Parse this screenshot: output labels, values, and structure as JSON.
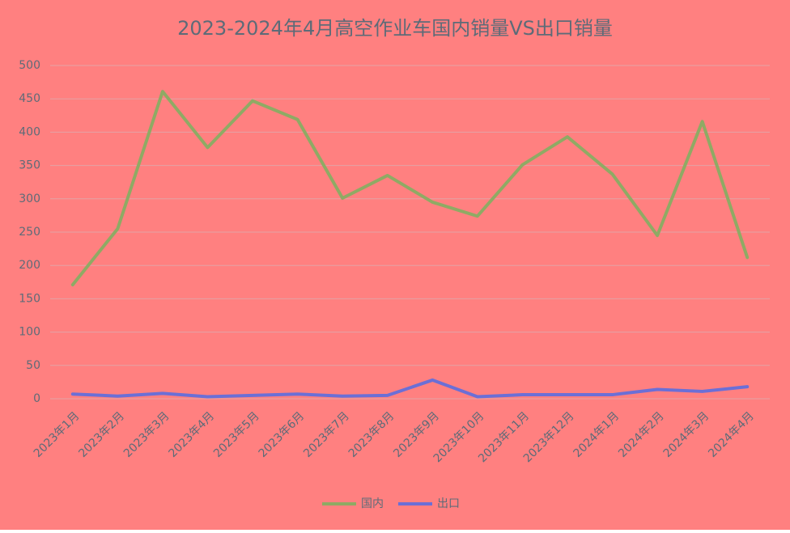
{
  "chart_data": {
    "type": "line",
    "title": "2023-2024年4月高空作业车国内销量VS出口销量",
    "categories": [
      "2023年1月",
      "2023年2月",
      "2023年3月",
      "2023年4月",
      "2023年5月",
      "2023年6月",
      "2023年7月",
      "2023年8月",
      "2023年9月",
      "2023年10月",
      "2023年11月",
      "2023年12月",
      "2024年1月",
      "2024年2月",
      "2024年3月",
      "2024年4月"
    ],
    "series": [
      {
        "name": "国内",
        "color": "#8faa64",
        "values": [
          171,
          255,
          461,
          377,
          447,
          419,
          301,
          335,
          295,
          274,
          351,
          393,
          337,
          245,
          416,
          212
        ]
      },
      {
        "name": "出口",
        "color": "#6b6fd6",
        "values": [
          7,
          4,
          8,
          3,
          5,
          7,
          4,
          5,
          28,
          3,
          6,
          6,
          6,
          14,
          11,
          18
        ]
      }
    ],
    "ylim": [
      0,
      500
    ],
    "yticks": [
      0,
      50,
      100,
      150,
      200,
      250,
      300,
      350,
      400,
      450,
      500
    ],
    "grid": true,
    "legend": "bottom",
    "background": "#ff8080"
  }
}
